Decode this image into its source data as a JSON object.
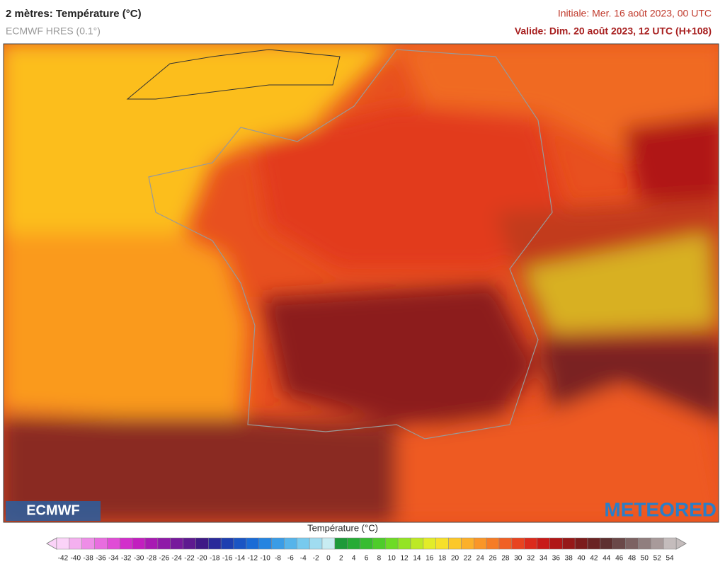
{
  "header": {
    "title": "2 mètres: Température (°C)",
    "model": "ECMWF HRES (0.1°)",
    "initial": "Initiale: Mer. 16 août 2023, 00 UTC",
    "valid": "Valide: Dim. 20 août 2023, 12 UTC (H+108)"
  },
  "logos": {
    "left": "ECMWF",
    "right": "METEORED"
  },
  "legend": {
    "title": "Température (°C)",
    "ticks": [
      -42,
      -40,
      -38,
      -36,
      -34,
      -32,
      -30,
      -28,
      -26,
      -24,
      -22,
      -20,
      -18,
      -16,
      -14,
      -12,
      -10,
      -8,
      -6,
      -4,
      -2,
      0,
      2,
      4,
      6,
      8,
      10,
      12,
      14,
      16,
      18,
      20,
      22,
      24,
      26,
      28,
      30,
      32,
      34,
      36,
      38,
      40,
      42,
      44,
      46,
      48,
      50,
      52,
      54
    ],
    "colors": [
      "#fbd3f8",
      "#f4b0ef",
      "#ee8ee7",
      "#e86ddf",
      "#e04dd6",
      "#d22ecb",
      "#c21fbf",
      "#a81ab3",
      "#8f1aa8",
      "#771a9c",
      "#5e1a90",
      "#3f1a86",
      "#2a2a9a",
      "#1e3fb0",
      "#1a55c4",
      "#1a6bd6",
      "#2684e0",
      "#3a9ce6",
      "#56b4ea",
      "#78caee",
      "#a0dcf0",
      "#c8ecf2",
      "#1e9a3a",
      "#27ab35",
      "#37bc30",
      "#4ecc2b",
      "#6ddb26",
      "#94e424",
      "#bde925",
      "#e2ec28",
      "#f6e02a",
      "#fcc82a",
      "#fcb02a",
      "#fa9628",
      "#f67c26",
      "#f06024",
      "#e84420",
      "#dc2a1c",
      "#c81a18",
      "#b01616",
      "#961818",
      "#7c1c1c",
      "#6a2424",
      "#5e3030",
      "#6a4848",
      "#7c6262",
      "#907e7e",
      "#a89a9a",
      "#c4bcbc"
    ]
  }
}
